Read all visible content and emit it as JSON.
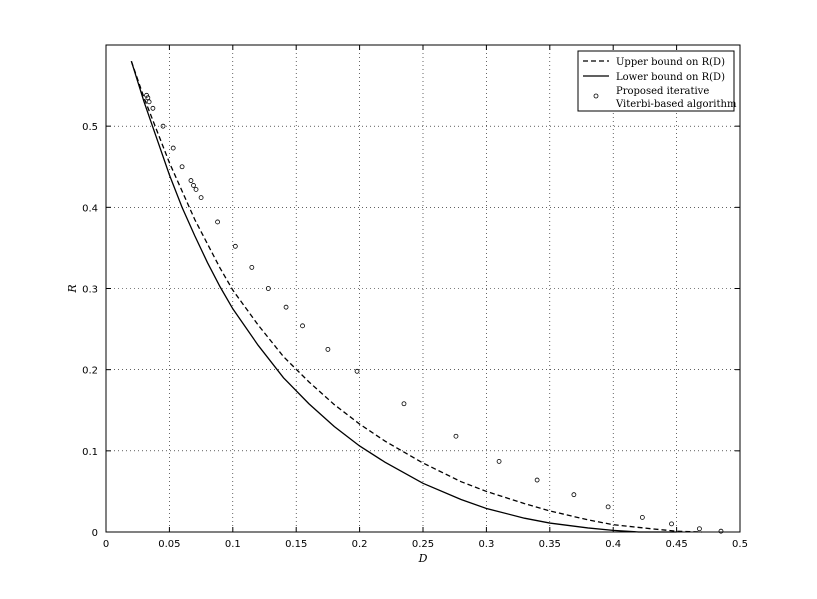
{
  "chart_data": {
    "type": "line",
    "title": "",
    "xlabel": "D",
    "ylabel": "R",
    "xlim": [
      0,
      0.5
    ],
    "ylim": [
      0,
      0.6
    ],
    "xticks": [
      "0",
      "0.05",
      "0.1",
      "0.15",
      "0.2",
      "0.25",
      "0.3",
      "0.35",
      "0.4",
      "0.45",
      "0.5"
    ],
    "yticks": [
      "0",
      "0.1",
      "0.2",
      "0.3",
      "0.4",
      "0.5"
    ],
    "grid": true,
    "legend_position": "top-right",
    "series": [
      {
        "name": "Upper bound on R(D)",
        "style": "dashed",
        "color": "#000000",
        "x": [
          0.02,
          0.03,
          0.04,
          0.05,
          0.06,
          0.07,
          0.08,
          0.09,
          0.1,
          0.12,
          0.14,
          0.16,
          0.18,
          0.2,
          0.22,
          0.25,
          0.28,
          0.3,
          0.33,
          0.35,
          0.38,
          0.4,
          0.43,
          0.45,
          0.47
        ],
        "y": [
          0.58,
          0.535,
          0.495,
          0.455,
          0.42,
          0.385,
          0.355,
          0.325,
          0.298,
          0.255,
          0.216,
          0.185,
          0.157,
          0.133,
          0.112,
          0.085,
          0.062,
          0.05,
          0.035,
          0.026,
          0.015,
          0.009,
          0.004,
          0.001,
          0.0
        ]
      },
      {
        "name": "Lower bound on R(D)",
        "style": "solid",
        "color": "#000000",
        "x": [
          0.02,
          0.03,
          0.04,
          0.05,
          0.06,
          0.07,
          0.08,
          0.09,
          0.1,
          0.12,
          0.14,
          0.16,
          0.18,
          0.2,
          0.22,
          0.25,
          0.28,
          0.3,
          0.33,
          0.35,
          0.38,
          0.4,
          0.42,
          0.45
        ],
        "y": [
          0.58,
          0.53,
          0.485,
          0.44,
          0.4,
          0.365,
          0.332,
          0.302,
          0.275,
          0.23,
          0.19,
          0.158,
          0.13,
          0.106,
          0.086,
          0.06,
          0.04,
          0.029,
          0.017,
          0.011,
          0.005,
          0.002,
          0.0,
          0.0
        ]
      },
      {
        "name": "Proposed iterative Viterbi-based algorithm",
        "legend_lines": [
          "Proposed iterative",
          "Viterbi-based algorithm"
        ],
        "style": "markers",
        "marker": "circle",
        "color": "#000000",
        "x": [
          0.032,
          0.033,
          0.034,
          0.037,
          0.045,
          0.053,
          0.06,
          0.067,
          0.069,
          0.071,
          0.075,
          0.088,
          0.102,
          0.115,
          0.128,
          0.142,
          0.155,
          0.175,
          0.198,
          0.235,
          0.276,
          0.31,
          0.34,
          0.369,
          0.396,
          0.423,
          0.446,
          0.468,
          0.485
        ],
        "y": [
          0.538,
          0.535,
          0.53,
          0.522,
          0.5,
          0.473,
          0.45,
          0.433,
          0.427,
          0.422,
          0.412,
          0.382,
          0.352,
          0.326,
          0.3,
          0.277,
          0.254,
          0.225,
          0.198,
          0.158,
          0.118,
          0.087,
          0.064,
          0.046,
          0.031,
          0.018,
          0.01,
          0.004,
          0.001
        ]
      }
    ]
  }
}
